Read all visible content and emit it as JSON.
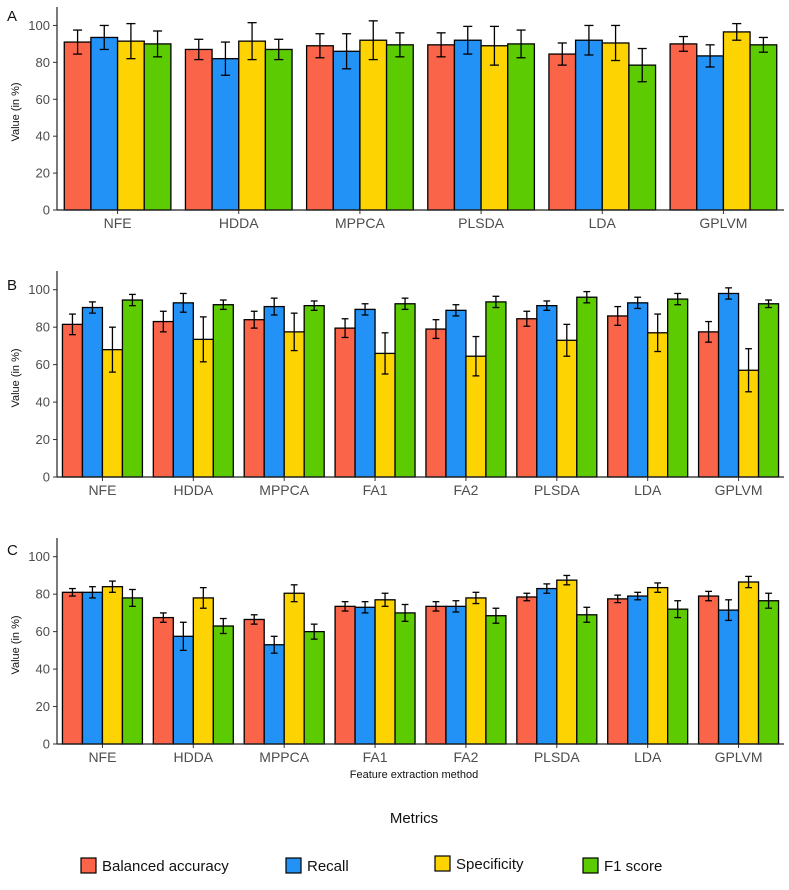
{
  "x_axis_label": "Feature extraction method",
  "legend": {
    "title": "Metrics",
    "items": [
      {
        "label": "Balanced accuracy",
        "color": "#fa6449"
      },
      {
        "label": "Recall",
        "color": "#2292f7"
      },
      {
        "label": "Specificity",
        "color": "#fdd401"
      },
      {
        "label": "F1 score",
        "color": "#5ccb02"
      }
    ]
  },
  "chart_data": [
    {
      "type": "bar",
      "panel": "A",
      "ylabel": "Value (in %)",
      "ylim": [
        0,
        110
      ],
      "yticks": [
        0,
        20,
        40,
        60,
        80,
        100
      ],
      "grid": false,
      "categories": [
        "NFE",
        "HDDA",
        "MPPCA",
        "PLSDA",
        "LDA",
        "GPLVM"
      ],
      "series": [
        {
          "name": "Balanced accuracy",
          "values": [
            91,
            87,
            89,
            89.5,
            84.5,
            90
          ],
          "errors": [
            6.5,
            5.5,
            6.5,
            6.5,
            6,
            4
          ]
        },
        {
          "name": "Recall",
          "values": [
            93.5,
            82,
            86,
            92,
            92,
            83.5
          ],
          "errors": [
            6.5,
            9,
            9.5,
            7.5,
            8,
            6
          ]
        },
        {
          "name": "Specificity",
          "values": [
            91.5,
            91.5,
            92,
            89,
            90.5,
            96.5
          ],
          "errors": [
            9.5,
            10,
            10.5,
            10.5,
            9.5,
            4.5
          ]
        },
        {
          "name": "F1 score",
          "values": [
            90,
            87,
            89.5,
            90,
            78.5,
            89.5
          ],
          "errors": [
            7,
            5.5,
            6.5,
            7.5,
            9,
            4
          ]
        }
      ]
    },
    {
      "type": "bar",
      "panel": "B",
      "ylabel": "Value (in %)",
      "ylim": [
        0,
        110
      ],
      "yticks": [
        0,
        20,
        40,
        60,
        80,
        100
      ],
      "grid": false,
      "categories": [
        "NFE",
        "HDDA",
        "MPPCA",
        "FA1",
        "FA2",
        "PLSDA",
        "LDA",
        "GPLVM"
      ],
      "series": [
        {
          "name": "Balanced accuracy",
          "values": [
            81.5,
            83,
            84,
            79.5,
            79,
            84.5,
            86,
            77.5
          ],
          "errors": [
            5.5,
            5.5,
            4.5,
            5,
            5,
            4,
            5,
            5.5
          ]
        },
        {
          "name": "Recall",
          "values": [
            90.5,
            93,
            91,
            89.5,
            89,
            91.5,
            93,
            98
          ],
          "errors": [
            3,
            5,
            4.5,
            3,
            3,
            2.5,
            3,
            3
          ]
        },
        {
          "name": "Specificity",
          "values": [
            68,
            73.5,
            77.5,
            66,
            64.5,
            73,
            77,
            57
          ],
          "errors": [
            12,
            12,
            10,
            11,
            10.5,
            8.5,
            10,
            11.5
          ]
        },
        {
          "name": "F1 score",
          "values": [
            94.5,
            92,
            91.5,
            92.5,
            93.5,
            96,
            95,
            92.5
          ],
          "errors": [
            3,
            2.5,
            2.5,
            3,
            3,
            3,
            3,
            2
          ]
        }
      ]
    },
    {
      "type": "bar",
      "panel": "C",
      "ylabel": "Value (in %)",
      "ylim": [
        0,
        110
      ],
      "yticks": [
        0,
        20,
        40,
        60,
        80,
        100
      ],
      "grid": false,
      "categories": [
        "NFE",
        "HDDA",
        "MPPCA",
        "FA1",
        "FA2",
        "PLSDA",
        "LDA",
        "GPLVM"
      ],
      "series": [
        {
          "name": "Balanced accuracy",
          "values": [
            81,
            67.5,
            66.5,
            73.5,
            73.5,
            78.5,
            77.5,
            79
          ],
          "errors": [
            2,
            2.5,
            2.5,
            2.5,
            2.5,
            2,
            2,
            2.5
          ]
        },
        {
          "name": "Recall",
          "values": [
            81,
            57.5,
            53,
            73,
            73.5,
            83,
            79,
            71.5
          ],
          "errors": [
            3,
            7.5,
            4.5,
            3,
            3,
            2.5,
            2,
            5.5
          ]
        },
        {
          "name": "Specificity",
          "values": [
            84,
            78,
            80.5,
            77,
            78,
            87.5,
            83.5,
            86.5
          ],
          "errors": [
            3,
            5.5,
            4.5,
            3.5,
            3,
            2.5,
            2.5,
            3
          ]
        },
        {
          "name": "F1 score",
          "values": [
            78,
            63,
            60,
            70,
            68.5,
            69,
            72,
            76.5
          ],
          "errors": [
            4.5,
            4,
            4,
            4.5,
            4,
            4,
            4.5,
            4
          ]
        }
      ]
    }
  ]
}
